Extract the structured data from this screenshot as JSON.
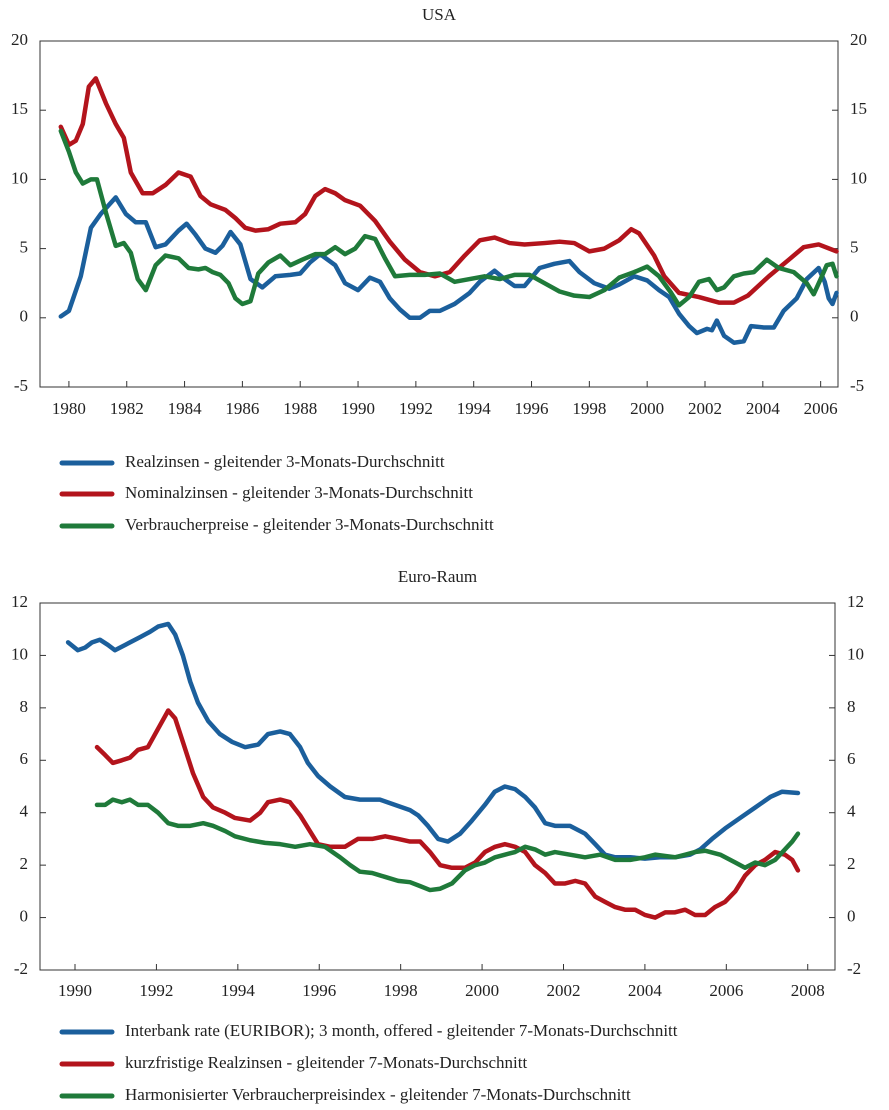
{
  "chart_data": [
    {
      "type": "line",
      "title": "USA",
      "xlim": [
        1979,
        2006.6
      ],
      "ylim": [
        -5,
        20
      ],
      "xticks": [
        1980,
        1982,
        1984,
        1986,
        1988,
        1990,
        1992,
        1994,
        1996,
        1998,
        2000,
        2002,
        2004,
        2006
      ],
      "yticks": [
        -5,
        0,
        5,
        10,
        15,
        20
      ],
      "series": [
        {
          "name": "Realzinsen - gleitender 3-Monats-Durchschnitt",
          "color": "#1b5f9c",
          "x": [
            1979.72,
            1980.0,
            1980.41,
            1980.76,
            1981.1,
            1981.62,
            1981.97,
            1982.31,
            1982.66,
            1983.0,
            1983.34,
            1983.79,
            1984.07,
            1984.38,
            1984.72,
            1985.07,
            1985.31,
            1985.59,
            1985.93,
            1986.28,
            1986.69,
            1987.14,
            1987.66,
            1988.0,
            1988.34,
            1988.69,
            1989.21,
            1989.55,
            1990.0,
            1990.41,
            1990.76,
            1991.1,
            1991.45,
            1991.79,
            1992.14,
            1992.48,
            1992.83,
            1993.34,
            1993.86,
            1994.21,
            1994.72,
            1995.07,
            1995.41,
            1995.76,
            1996.28,
            1996.79,
            1997.31,
            1997.66,
            1998.17,
            1998.69,
            1999.03,
            1999.55,
            2000.0,
            2000.41,
            2000.76,
            2001.1,
            2001.45,
            2001.72,
            2002.07,
            2002.24,
            2002.41,
            2002.66,
            2003.0,
            2003.34,
            2003.59,
            2004.03,
            2004.38,
            2004.72,
            2005.17,
            2005.52,
            2005.93,
            2006.14,
            2006.28,
            2006.41,
            2006.55
          ],
          "values": [
            0.1,
            0.5,
            3,
            6.5,
            7.5,
            8.7,
            7.5,
            6.9,
            6.9,
            5.1,
            5.3,
            6.3,
            6.8,
            6.0,
            5.0,
            4.7,
            5.2,
            6.2,
            5.3,
            2.8,
            2.2,
            3.0,
            3.1,
            3.2,
            4.0,
            4.6,
            3.8,
            2.5,
            2.0,
            2.9,
            2.6,
            1.4,
            0.6,
            0.0,
            0.0,
            0.5,
            0.5,
            1.0,
            1.8,
            2.6,
            3.4,
            2.8,
            2.3,
            2.3,
            3.6,
            3.9,
            4.1,
            3.3,
            2.5,
            2.1,
            2.4,
            3.0,
            2.7,
            2.0,
            1.5,
            0.3,
            -0.6,
            -1.1,
            -0.8,
            -0.9,
            -0.2,
            -1.3,
            -1.8,
            -1.7,
            -0.6,
            -0.7,
            -0.7,
            0.5,
            1.4,
            2.8,
            3.6,
            2.6,
            1.4,
            1.0,
            1.8
          ]
        },
        {
          "name": "Nominalzinsen - gleitender 3-Monats-Durchschnitt",
          "color": "#b3141c",
          "x": [
            1979.72,
            1980.0,
            1980.24,
            1980.48,
            1980.69,
            1980.93,
            1981.28,
            1981.62,
            1981.9,
            1982.14,
            1982.55,
            1982.9,
            1983.34,
            1983.79,
            1984.21,
            1984.55,
            1984.9,
            1985.41,
            1985.76,
            1986.1,
            1986.45,
            1986.9,
            1987.31,
            1987.83,
            1988.17,
            1988.52,
            1988.86,
            1989.21,
            1989.55,
            1990.07,
            1990.59,
            1991.1,
            1991.62,
            1992.14,
            1992.66,
            1993.17,
            1993.69,
            1994.21,
            1994.72,
            1995.24,
            1995.76,
            1996.45,
            1996.97,
            1997.48,
            1998.0,
            1998.52,
            1999.03,
            1999.45,
            1999.72,
            2000.24,
            2000.59,
            2001.1,
            2001.79,
            2002.48,
            2003.0,
            2003.48,
            2004.21,
            2004.9,
            2005.41,
            2005.93,
            2006.55
          ],
          "values": [
            13.8,
            12.5,
            12.8,
            14,
            16.7,
            17.3,
            15.5,
            14,
            13,
            10.5,
            9,
            9,
            9.6,
            10.5,
            10.2,
            8.8,
            8.2,
            7.8,
            7.2,
            6.5,
            6.3,
            6.4,
            6.8,
            6.9,
            7.5,
            8.8,
            9.3,
            9.0,
            8.5,
            8.1,
            7.0,
            5.5,
            4.2,
            3.3,
            3.0,
            3.3,
            4.5,
            5.6,
            5.8,
            5.4,
            5.3,
            5.4,
            5.5,
            5.4,
            4.8,
            5.0,
            5.6,
            6.4,
            6.1,
            4.5,
            3.0,
            1.8,
            1.5,
            1.1,
            1.1,
            1.6,
            3.0,
            4.2,
            5.1,
            5.3,
            4.8
          ]
        },
        {
          "name": "Verbraucherpreise - gleitender 3-Monats-Durchschnitt",
          "color": "#1f7a3a",
          "x": [
            1979.72,
            1980.0,
            1980.24,
            1980.48,
            1980.76,
            1980.97,
            1981.28,
            1981.62,
            1981.9,
            1982.14,
            1982.38,
            1982.66,
            1983.0,
            1983.34,
            1983.79,
            1984.14,
            1984.48,
            1984.72,
            1984.97,
            1985.24,
            1985.52,
            1985.76,
            1986.0,
            1986.28,
            1986.55,
            1986.9,
            1987.31,
            1987.66,
            1988.07,
            1988.52,
            1988.86,
            1989.21,
            1989.55,
            1989.9,
            1990.24,
            1990.59,
            1990.93,
            1991.28,
            1991.79,
            1992.31,
            1992.83,
            1993.34,
            1993.86,
            1994.38,
            1994.9,
            1995.41,
            1995.93,
            1996.45,
            1996.97,
            1997.48,
            1998.0,
            1998.52,
            1999.03,
            1999.55,
            2000.0,
            2000.41,
            2000.83,
            2001.1,
            2001.45,
            2001.79,
            2002.14,
            2002.41,
            2002.66,
            2003.0,
            2003.34,
            2003.69,
            2004.14,
            2004.55,
            2005.07,
            2005.52,
            2005.76,
            2006.0,
            2006.21,
            2006.41,
            2006.55
          ],
          "values": [
            13.5,
            12,
            10.5,
            9.7,
            10,
            10,
            7.6,
            5.2,
            5.4,
            4.7,
            2.8,
            2.0,
            3.8,
            4.5,
            4.3,
            3.6,
            3.5,
            3.6,
            3.3,
            3.1,
            2.5,
            1.4,
            1.0,
            1.2,
            3.2,
            4.0,
            4.5,
            3.8,
            4.2,
            4.6,
            4.6,
            5.1,
            4.6,
            5.0,
            5.9,
            5.7,
            4.3,
            3.0,
            3.1,
            3.1,
            3.2,
            2.6,
            2.8,
            3.0,
            2.8,
            3.1,
            3.1,
            2.5,
            1.9,
            1.6,
            1.5,
            2.0,
            2.9,
            3.3,
            3.7,
            3.0,
            1.8,
            0.9,
            1.5,
            2.6,
            2.8,
            2.0,
            2.2,
            3.0,
            3.2,
            3.3,
            4.2,
            3.6,
            3.3,
            2.5,
            1.7,
            2.8,
            3.8,
            3.9,
            3.0
          ]
        }
      ]
    },
    {
      "type": "line",
      "title": "Euro-Raum",
      "xlim": [
        1989.14,
        2008.67
      ],
      "ylim": [
        -2,
        12
      ],
      "xticks": [
        1990,
        1992,
        1994,
        1996,
        1998,
        2000,
        2002,
        2004,
        2006,
        2008
      ],
      "yticks": [
        -2,
        0,
        2,
        4,
        6,
        8,
        10,
        12
      ],
      "series": [
        {
          "name": "Interbank rate (EURIBOR); 3 month, offered - gleitender 7-Monats-Durchschnitt",
          "color": "#1b5f9c",
          "x": [
            1989.83,
            1990.07,
            1990.25,
            1990.42,
            1990.61,
            1990.81,
            1990.98,
            1991.23,
            1991.6,
            1991.84,
            1992.04,
            1992.29,
            1992.46,
            1992.65,
            1992.83,
            1993.02,
            1993.27,
            1993.56,
            1993.86,
            1994.18,
            1994.5,
            1994.74,
            1995.04,
            1995.28,
            1995.53,
            1995.72,
            1995.97,
            1996.27,
            1996.63,
            1997.0,
            1997.49,
            1997.86,
            1998.23,
            1998.43,
            1998.67,
            1998.92,
            1999.16,
            1999.46,
            1999.75,
            2000.07,
            2000.31,
            2000.56,
            2000.81,
            2001.06,
            2001.3,
            2001.55,
            2001.79,
            2002.16,
            2002.53,
            2002.78,
            2003.02,
            2003.27,
            2003.64,
            2004.0,
            2004.37,
            2004.74,
            2005.11,
            2005.36,
            2005.65,
            2005.97,
            2006.34,
            2006.71,
            2007.08,
            2007.37,
            2007.76
          ],
          "values": [
            10.5,
            10.2,
            10.3,
            10.5,
            10.6,
            10.4,
            10.2,
            10.4,
            10.7,
            10.9,
            11.1,
            11.2,
            10.8,
            10.0,
            9.0,
            8.2,
            7.5,
            7.0,
            6.7,
            6.5,
            6.6,
            7.0,
            7.1,
            7.0,
            6.5,
            5.9,
            5.4,
            5.0,
            4.6,
            4.5,
            4.5,
            4.3,
            4.1,
            3.9,
            3.5,
            3.0,
            2.9,
            3.2,
            3.7,
            4.3,
            4.8,
            5.0,
            4.9,
            4.6,
            4.2,
            3.6,
            3.5,
            3.5,
            3.2,
            2.8,
            2.4,
            2.3,
            2.3,
            2.25,
            2.3,
            2.3,
            2.4,
            2.6,
            3.0,
            3.4,
            3.8,
            4.2,
            4.6,
            4.8,
            4.75
          ]
        },
        {
          "name": "kurzfristige Realzinsen - gleitender 7-Monats-Durchschnitt",
          "color": "#b3141c",
          "x": [
            1990.54,
            1990.74,
            1990.93,
            1991.15,
            1991.35,
            1991.55,
            1991.79,
            1992.04,
            1992.29,
            1992.46,
            1992.65,
            1992.9,
            1993.15,
            1993.39,
            1993.69,
            1993.93,
            1994.3,
            1994.55,
            1994.74,
            1995.04,
            1995.28,
            1995.53,
            1995.77,
            1995.97,
            1996.27,
            1996.63,
            1996.95,
            1997.3,
            1997.62,
            1997.94,
            1998.23,
            1998.48,
            1998.72,
            1998.97,
            1999.26,
            1999.58,
            1999.83,
            2000.07,
            2000.32,
            2000.56,
            2000.81,
            2001.06,
            2001.3,
            2001.55,
            2001.79,
            2002.04,
            2002.29,
            2002.53,
            2002.78,
            2003.02,
            2003.27,
            2003.51,
            2003.76,
            2004.0,
            2004.25,
            2004.5,
            2004.74,
            2004.99,
            2005.23,
            2005.48,
            2005.72,
            2005.97,
            2006.22,
            2006.46,
            2006.71,
            2006.95,
            2007.2,
            2007.44,
            2007.62,
            2007.76
          ],
          "values": [
            6.5,
            6.2,
            5.9,
            6.0,
            6.1,
            6.4,
            6.5,
            7.2,
            7.9,
            7.6,
            6.7,
            5.5,
            4.6,
            4.2,
            4.0,
            3.8,
            3.7,
            4.0,
            4.4,
            4.5,
            4.4,
            3.9,
            3.3,
            2.8,
            2.7,
            2.7,
            3.0,
            3.0,
            3.1,
            3.0,
            2.9,
            2.9,
            2.5,
            2.0,
            1.9,
            1.9,
            2.1,
            2.5,
            2.7,
            2.8,
            2.7,
            2.5,
            2.0,
            1.7,
            1.3,
            1.3,
            1.4,
            1.3,
            0.8,
            0.6,
            0.4,
            0.3,
            0.3,
            0.1,
            0.0,
            0.2,
            0.2,
            0.3,
            0.1,
            0.1,
            0.4,
            0.6,
            1.0,
            1.6,
            2.0,
            2.2,
            2.5,
            2.4,
            2.2,
            1.8
          ]
        },
        {
          "name": "Harmonisierter Verbraucherpreisindex - gleitender 7-Monats-Durchschnitt",
          "color": "#1f7a3a",
          "x": [
            1990.54,
            1990.74,
            1990.93,
            1991.15,
            1991.35,
            1991.55,
            1991.79,
            1992.04,
            1992.29,
            1992.53,
            1992.83,
            1993.15,
            1993.39,
            1993.69,
            1993.93,
            1994.3,
            1994.67,
            1995.04,
            1995.41,
            1995.77,
            1996.14,
            1996.51,
            1996.76,
            1997.0,
            1997.3,
            1997.62,
            1997.94,
            1998.23,
            1998.48,
            1998.72,
            1998.97,
            1999.26,
            1999.58,
            1999.83,
            2000.07,
            2000.32,
            2000.56,
            2000.81,
            2001.06,
            2001.3,
            2001.55,
            2001.79,
            2002.16,
            2002.53,
            2002.9,
            2003.27,
            2003.64,
            2004.0,
            2004.25,
            2004.5,
            2004.74,
            2004.99,
            2005.23,
            2005.48,
            2005.85,
            2006.22,
            2006.46,
            2006.71,
            2006.95,
            2007.2,
            2007.44,
            2007.62,
            2007.76
          ],
          "values": [
            4.3,
            4.3,
            4.5,
            4.4,
            4.5,
            4.3,
            4.3,
            4.0,
            3.6,
            3.5,
            3.5,
            3.6,
            3.5,
            3.3,
            3.1,
            2.95,
            2.85,
            2.8,
            2.7,
            2.8,
            2.7,
            2.3,
            2.0,
            1.75,
            1.7,
            1.55,
            1.4,
            1.35,
            1.2,
            1.05,
            1.1,
            1.3,
            1.8,
            2.0,
            2.1,
            2.3,
            2.4,
            2.5,
            2.7,
            2.6,
            2.4,
            2.5,
            2.4,
            2.3,
            2.4,
            2.2,
            2.2,
            2.3,
            2.4,
            2.35,
            2.3,
            2.4,
            2.5,
            2.55,
            2.4,
            2.1,
            1.9,
            2.1,
            2.0,
            2.2,
            2.6,
            2.9,
            3.2
          ]
        }
      ]
    }
  ]
}
